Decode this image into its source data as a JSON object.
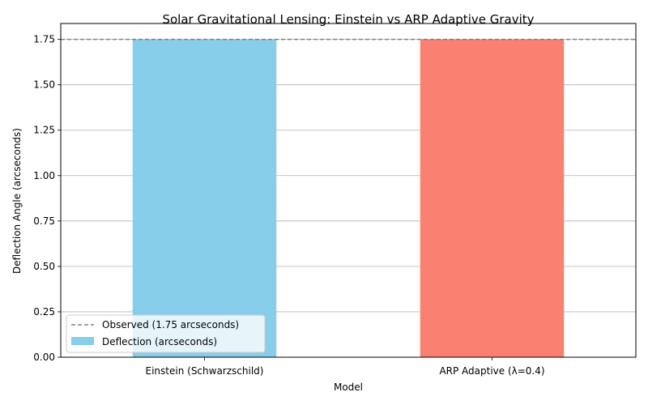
{
  "chart_data": {
    "type": "bar",
    "title": "Solar Gravitational Lensing: Einstein vs ARP Adaptive Gravity",
    "xlabel": "Model",
    "ylabel": "Deflection Angle (arcseconds)",
    "categories": [
      "Einstein (Schwarzschild)",
      "ARP Adaptive (λ=0.4)"
    ],
    "series": [
      {
        "name": "Deflection (arcseconds)",
        "values": [
          1.75,
          1.75
        ],
        "colors": [
          "#87CEEB",
          "#FA8072"
        ]
      }
    ],
    "reference_line": {
      "label": "Observed (1.75 arcseconds)",
      "value": 1.75,
      "color": "#808080",
      "style": "dashed"
    },
    "ylim": [
      0,
      1.8375
    ],
    "yticks": [
      0.0,
      0.25,
      0.5,
      0.75,
      1.0,
      1.25,
      1.5,
      1.75
    ],
    "ytick_labels": [
      "0.00",
      "0.25",
      "0.50",
      "0.75",
      "1.00",
      "1.25",
      "1.50",
      "1.75"
    ],
    "grid": "y",
    "legend_position": "lower-left"
  }
}
